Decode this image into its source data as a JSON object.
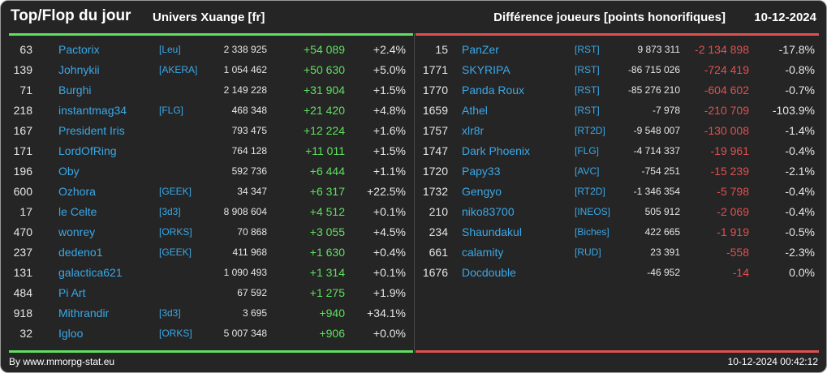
{
  "header": {
    "title": "Top/Flop du jour",
    "universe": "Univers Xuange [fr]",
    "metric": "Différence joueurs [points honorifiques]",
    "date": "10-12-2024"
  },
  "top": [
    {
      "rank": "63",
      "name": "Pactorix",
      "tag": "[Leu]",
      "points": "2 338 925",
      "diff": "+54 089",
      "pct": "+2.4%"
    },
    {
      "rank": "139",
      "name": "Johnykii",
      "tag": "[AKERA]",
      "points": "1 054 462",
      "diff": "+50 630",
      "pct": "+5.0%"
    },
    {
      "rank": "71",
      "name": "Burghi",
      "tag": "",
      "points": "2 149 228",
      "diff": "+31 904",
      "pct": "+1.5%"
    },
    {
      "rank": "218",
      "name": "instantmag34",
      "tag": "[FLG]",
      "points": "468 348",
      "diff": "+21 420",
      "pct": "+4.8%"
    },
    {
      "rank": "167",
      "name": "President Iris",
      "tag": "",
      "points": "793 475",
      "diff": "+12 224",
      "pct": "+1.6%"
    },
    {
      "rank": "171",
      "name": "LordOfRing",
      "tag": "",
      "points": "764 128",
      "diff": "+11 011",
      "pct": "+1.5%"
    },
    {
      "rank": "196",
      "name": "Oby",
      "tag": "",
      "points": "592 736",
      "diff": "+6 444",
      "pct": "+1.1%"
    },
    {
      "rank": "600",
      "name": "Ozhora",
      "tag": "[GEEK]",
      "points": "34 347",
      "diff": "+6 317",
      "pct": "+22.5%"
    },
    {
      "rank": "17",
      "name": "le Celte",
      "tag": "[3d3]",
      "points": "8 908 604",
      "diff": "+4 512",
      "pct": "+0.1%"
    },
    {
      "rank": "470",
      "name": "wonrey",
      "tag": "[ORKS]",
      "points": "70 868",
      "diff": "+3 055",
      "pct": "+4.5%"
    },
    {
      "rank": "237",
      "name": "dedeno1",
      "tag": "[GEEK]",
      "points": "411 968",
      "diff": "+1 630",
      "pct": "+0.4%"
    },
    {
      "rank": "131",
      "name": "galactica621",
      "tag": "",
      "points": "1 090 493",
      "diff": "+1 314",
      "pct": "+0.1%"
    },
    {
      "rank": "484",
      "name": "Pi Art",
      "tag": "",
      "points": "67 592",
      "diff": "+1 275",
      "pct": "+1.9%"
    },
    {
      "rank": "918",
      "name": "Mithrandir",
      "tag": "[3d3]",
      "points": "3 695",
      "diff": "+940",
      "pct": "+34.1%"
    },
    {
      "rank": "32",
      "name": "Igloo",
      "tag": "[ORKS]",
      "points": "5 007 348",
      "diff": "+906",
      "pct": "+0.0%"
    }
  ],
  "flop": [
    {
      "rank": "15",
      "name": "PanZer",
      "tag": "[RST]",
      "points": "9 873 311",
      "diff": "-2 134 898",
      "pct": "-17.8%"
    },
    {
      "rank": "1771",
      "name": "SKYRIPA",
      "tag": "[RST]",
      "points": "-86 715 026",
      "diff": "-724 419",
      "pct": "-0.8%"
    },
    {
      "rank": "1770",
      "name": "Panda Roux",
      "tag": "[RST]",
      "points": "-85 276 210",
      "diff": "-604 602",
      "pct": "-0.7%"
    },
    {
      "rank": "1659",
      "name": "Athel",
      "tag": "[RST]",
      "points": "-7 978",
      "diff": "-210 709",
      "pct": "-103.9%"
    },
    {
      "rank": "1757",
      "name": "xlr8r",
      "tag": "[RT2D]",
      "points": "-9 548 007",
      "diff": "-130 008",
      "pct": "-1.4%"
    },
    {
      "rank": "1747",
      "name": "Dark Phoenix",
      "tag": "[FLG]",
      "points": "-4 714 337",
      "diff": "-19 961",
      "pct": "-0.4%"
    },
    {
      "rank": "1720",
      "name": "Papy33",
      "tag": "[AVC]",
      "points": "-754 251",
      "diff": "-15 239",
      "pct": "-2.1%"
    },
    {
      "rank": "1732",
      "name": "Gengyo",
      "tag": "[RT2D]",
      "points": "-1 346 354",
      "diff": "-5 798",
      "pct": "-0.4%"
    },
    {
      "rank": "210",
      "name": "niko83700",
      "tag": "[INEOS]",
      "points": "505 912",
      "diff": "-2 069",
      "pct": "-0.4%"
    },
    {
      "rank": "234",
      "name": "Shaundakul",
      "tag": "[Biches]",
      "points": "422 665",
      "diff": "-1 919",
      "pct": "-0.5%"
    },
    {
      "rank": "661",
      "name": "calamity",
      "tag": "[RUD]",
      "points": "23 391",
      "diff": "-558",
      "pct": "-2.3%"
    },
    {
      "rank": "1676",
      "name": "Docdouble",
      "tag": "",
      "points": "-46 952",
      "diff": "-14",
      "pct": "0.0%"
    }
  ],
  "footer": {
    "source": "By www.mmorpg-stat.eu",
    "timestamp": "10-12-2024 00:42:12"
  },
  "colors": {
    "background": "#252525",
    "positive": "#5fe05f",
    "negative": "#e05050",
    "link": "#3aa8e8"
  }
}
